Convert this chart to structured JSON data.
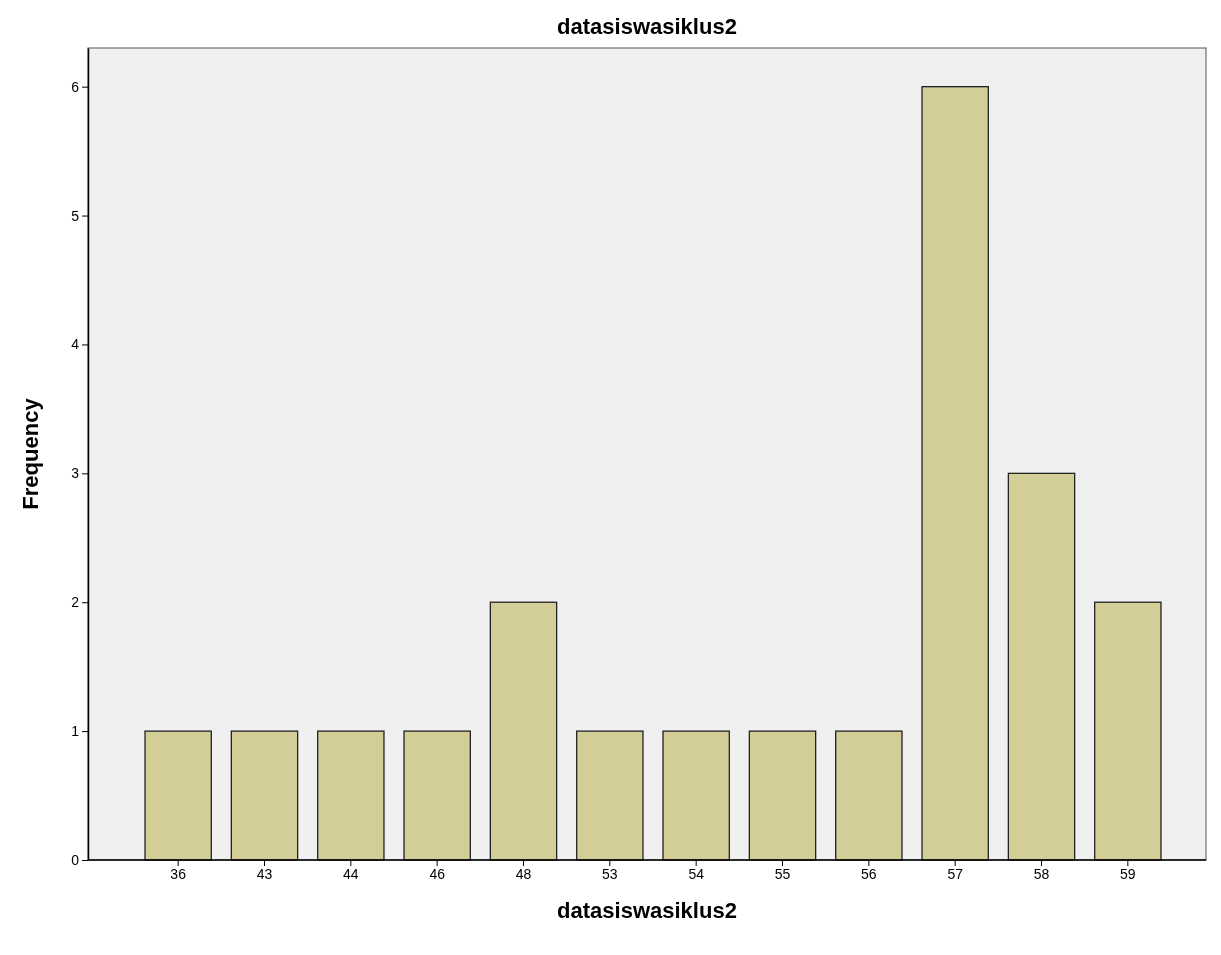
{
  "chart_data": {
    "type": "bar",
    "title": "datasiswasiklus2",
    "xlabel": "datasiswasiklus2",
    "ylabel": "Frequency",
    "categories": [
      "36",
      "43",
      "44",
      "46",
      "48",
      "53",
      "54",
      "55",
      "56",
      "57",
      "58",
      "59"
    ],
    "values": [
      1,
      1,
      1,
      1,
      2,
      1,
      1,
      1,
      1,
      6,
      3,
      2
    ],
    "color": "#d3ce98",
    "ylim": [
      0,
      6.3
    ],
    "yticks": [
      0,
      1,
      2,
      3,
      4,
      5,
      6
    ],
    "grid": false
  }
}
